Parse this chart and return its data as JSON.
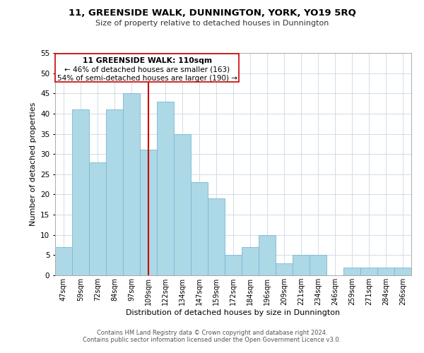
{
  "title_line1": "11, GREENSIDE WALK, DUNNINGTON, YORK, YO19 5RQ",
  "title_line2": "Size of property relative to detached houses in Dunnington",
  "xlabel": "Distribution of detached houses by size in Dunnington",
  "ylabel": "Number of detached properties",
  "bar_labels": [
    "47sqm",
    "59sqm",
    "72sqm",
    "84sqm",
    "97sqm",
    "109sqm",
    "122sqm",
    "134sqm",
    "147sqm",
    "159sqm",
    "172sqm",
    "184sqm",
    "196sqm",
    "209sqm",
    "221sqm",
    "234sqm",
    "246sqm",
    "259sqm",
    "271sqm",
    "284sqm",
    "296sqm"
  ],
  "bar_values": [
    7,
    41,
    28,
    41,
    45,
    31,
    43,
    35,
    23,
    19,
    5,
    7,
    10,
    3,
    5,
    5,
    0,
    2,
    2,
    2,
    2
  ],
  "bar_color": "#add8e6",
  "bar_edge_color": "#7ab8d4",
  "highlight_index": 5,
  "highlight_line_color": "#cc0000",
  "ylim": [
    0,
    55
  ],
  "yticks": [
    0,
    5,
    10,
    15,
    20,
    25,
    30,
    35,
    40,
    45,
    50,
    55
  ],
  "annotation_title": "11 GREENSIDE WALK: 110sqm",
  "annotation_line1": "← 46% of detached houses are smaller (163)",
  "annotation_line2": "54% of semi-detached houses are larger (190) →",
  "annotation_box_color": "#ffffff",
  "annotation_box_edge_color": "#cc0000",
  "footer_line1": "Contains HM Land Registry data © Crown copyright and database right 2024.",
  "footer_line2": "Contains public sector information licensed under the Open Government Licence v3.0.",
  "background_color": "#ffffff",
  "grid_color": "#d0dce8"
}
